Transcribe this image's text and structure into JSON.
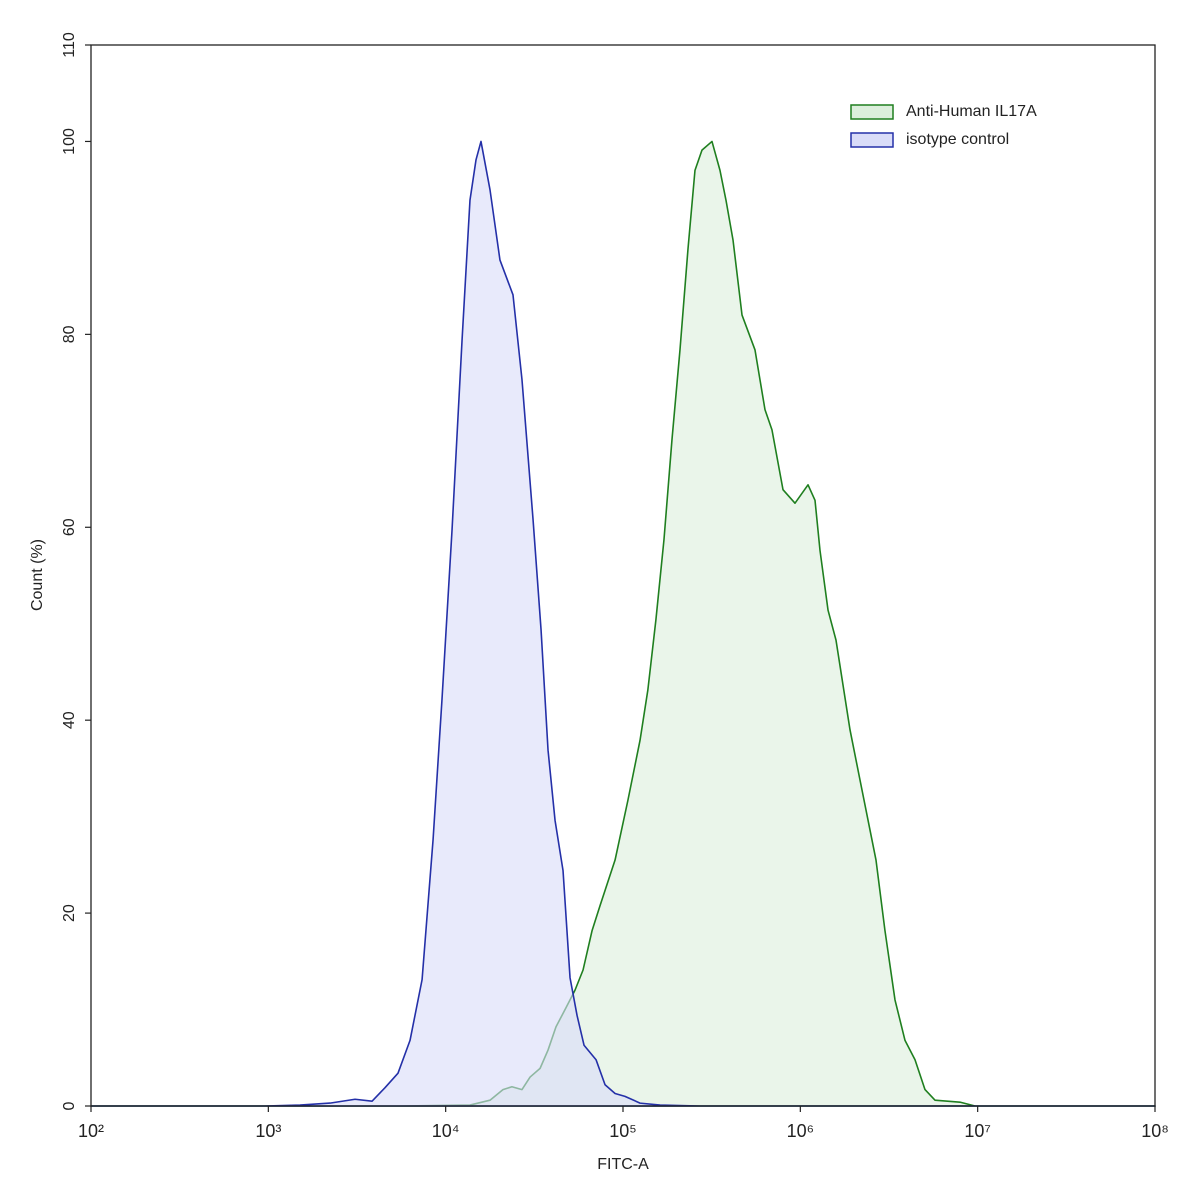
{
  "chart_data": {
    "type": "histogram-overlay",
    "x_label": "FITC-A",
    "y_label": "Count  (%)",
    "xscale": "log",
    "xlim": [
      100,
      100000000
    ],
    "xticks": [
      {
        "value": 100,
        "label": "10²"
      },
      {
        "value": 1000,
        "label": "10³"
      },
      {
        "value": 10000,
        "label": "10⁴"
      },
      {
        "value": 100000,
        "label": "10⁵"
      },
      {
        "value": 1000000,
        "label": "10⁶"
      },
      {
        "value": 10000000,
        "label": "10⁷"
      },
      {
        "value": 100000000,
        "label": "10⁸"
      }
    ],
    "ylim": [
      0,
      110
    ],
    "yticks": [
      0,
      20,
      40,
      60,
      80,
      100,
      110
    ],
    "legend": "upper right",
    "series": [
      {
        "name": "Anti-Human IL17A",
        "color": "#1f7f1f",
        "fill": "#dcefdc",
        "x": [
          100,
          5521,
          13710,
          17780,
          21040,
          23640,
          26940,
          29920,
          34070,
          37780,
          41880,
          47730,
          53600,
          59530,
          66960,
          74300,
          90200,
          106600,
          124700,
          138000,
          153300,
          170200,
          188900,
          209600,
          232400,
          254600,
          278800,
          317500,
          352300,
          380900,
          417100,
          469000,
          554900,
          631900,
          692000,
          798400,
          933000,
          1105000,
          1210000,
          1291000,
          1433000,
          1589000,
          1906000,
          2170000,
          2671000,
          3000000,
          3418000,
          3893000,
          4433000,
          5047000,
          5747000,
          7946000,
          9660000,
          100000000
        ],
        "values": [
          0,
          0,
          0.1,
          0.6,
          1.7,
          2.0,
          1.7,
          3.0,
          3.9,
          5.8,
          8.2,
          10.2,
          12.0,
          14.1,
          18.2,
          20.8,
          25.5,
          31.7,
          37.9,
          43.1,
          50.4,
          58.7,
          69.1,
          78.4,
          88.8,
          97.0,
          99.1,
          100,
          97.0,
          93.9,
          89.8,
          82.0,
          78.4,
          72.2,
          70.1,
          63.9,
          62.5,
          64.4,
          62.8,
          57.6,
          51.4,
          48.3,
          39.0,
          33.8,
          25.5,
          18.2,
          11.0,
          6.8,
          4.8,
          1.7,
          0.6,
          0.4,
          0,
          0
        ]
      },
      {
        "name": "isotype control",
        "color": "#2430a8",
        "fill": "#d9dcf8",
        "x": [
          100,
          958,
          1510,
          2228,
          3083,
          3846,
          4550,
          5385,
          6295,
          7362,
          8490,
          9530,
          10860,
          12370,
          13710,
          14830,
          15820,
          17780,
          20240,
          23970,
          26940,
          31100,
          34500,
          37780,
          41390,
          45910,
          50270,
          55050,
          60290,
          70460,
          79210,
          90200,
          102600,
          124700,
          161800,
          271700,
          100000000
        ],
        "values": [
          0,
          0,
          0.1,
          0.3,
          0.7,
          0.5,
          1.9,
          3.4,
          6.8,
          13.1,
          27.6,
          42.1,
          59.7,
          79.4,
          93.9,
          98.1,
          100,
          95.0,
          87.7,
          84.1,
          75.3,
          60.8,
          49.4,
          36.9,
          29.6,
          24.4,
          13.3,
          9.4,
          6.3,
          4.8,
          2.2,
          1.3,
          1.0,
          0.3,
          0.1,
          0,
          0
        ]
      }
    ]
  }
}
